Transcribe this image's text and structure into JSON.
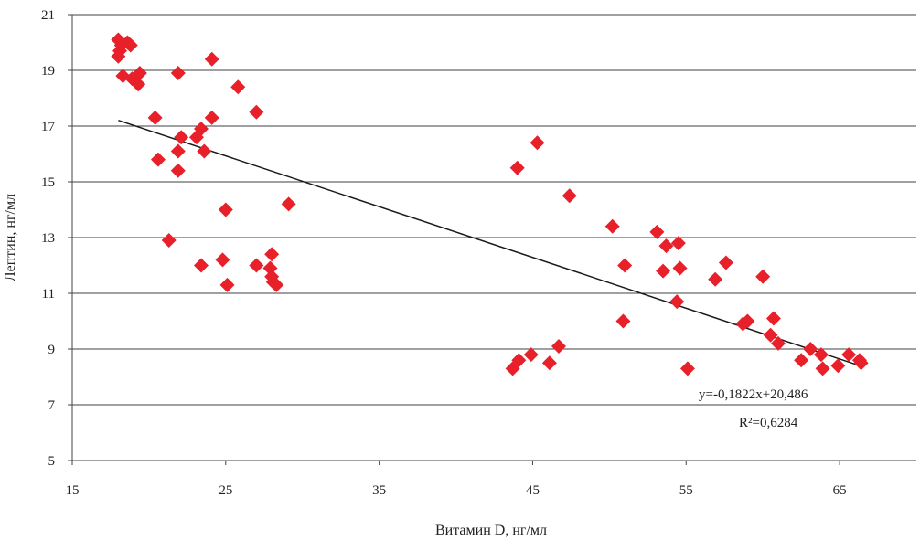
{
  "chart_data": {
    "type": "scatter",
    "title": "",
    "xlabel": "Витамин D, нг/мл",
    "ylabel": "Лептин, нг/мл",
    "xlim": [
      15,
      70
    ],
    "ylim": [
      5,
      21
    ],
    "x_ticks": [
      15,
      25,
      35,
      45,
      55,
      65
    ],
    "x_tick_labels": [
      "15",
      "25",
      "35",
      "45",
      "55",
      "65"
    ],
    "y_ticks": [
      5,
      7,
      9,
      11,
      13,
      15,
      17,
      19,
      21
    ],
    "y_tick_labels": [
      "5",
      "7",
      "9",
      "11",
      "13",
      "15",
      "17",
      "19",
      "21"
    ],
    "grid": "horizontal",
    "legend": "none",
    "marker": "diamond",
    "marker_color": "#e8202a",
    "line_color": "#1a1a1a",
    "points": [
      {
        "x": 18.0,
        "y": 20.1
      },
      {
        "x": 18.2,
        "y": 19.9
      },
      {
        "x": 18.6,
        "y": 20.0
      },
      {
        "x": 18.8,
        "y": 19.9
      },
      {
        "x": 18.1,
        "y": 19.7
      },
      {
        "x": 18.0,
        "y": 19.5
      },
      {
        "x": 18.3,
        "y": 18.8
      },
      {
        "x": 18.9,
        "y": 18.7
      },
      {
        "x": 19.4,
        "y": 18.9
      },
      {
        "x": 19.3,
        "y": 18.5
      },
      {
        "x": 21.9,
        "y": 18.9
      },
      {
        "x": 24.1,
        "y": 19.4
      },
      {
        "x": 20.4,
        "y": 17.3
      },
      {
        "x": 24.1,
        "y": 17.3
      },
      {
        "x": 25.8,
        "y": 18.4
      },
      {
        "x": 27.0,
        "y": 17.5
      },
      {
        "x": 23.4,
        "y": 16.9
      },
      {
        "x": 23.1,
        "y": 16.6
      },
      {
        "x": 22.1,
        "y": 16.6
      },
      {
        "x": 21.9,
        "y": 16.1
      },
      {
        "x": 23.6,
        "y": 16.1
      },
      {
        "x": 20.6,
        "y": 15.8
      },
      {
        "x": 21.9,
        "y": 15.4
      },
      {
        "x": 25.0,
        "y": 14.0
      },
      {
        "x": 29.1,
        "y": 14.2
      },
      {
        "x": 21.3,
        "y": 12.9
      },
      {
        "x": 23.4,
        "y": 12.0
      },
      {
        "x": 24.8,
        "y": 12.2
      },
      {
        "x": 27.0,
        "y": 12.0
      },
      {
        "x": 28.0,
        "y": 12.4
      },
      {
        "x": 27.9,
        "y": 11.9
      },
      {
        "x": 28.0,
        "y": 11.6
      },
      {
        "x": 28.1,
        "y": 11.4
      },
      {
        "x": 28.3,
        "y": 11.3
      },
      {
        "x": 25.1,
        "y": 11.3
      },
      {
        "x": 44.0,
        "y": 15.5
      },
      {
        "x": 45.3,
        "y": 16.4
      },
      {
        "x": 47.4,
        "y": 14.5
      },
      {
        "x": 50.2,
        "y": 13.4
      },
      {
        "x": 53.1,
        "y": 13.2
      },
      {
        "x": 53.7,
        "y": 12.7
      },
      {
        "x": 54.5,
        "y": 12.8
      },
      {
        "x": 53.5,
        "y": 11.8
      },
      {
        "x": 54.6,
        "y": 11.9
      },
      {
        "x": 51.0,
        "y": 12.0
      },
      {
        "x": 57.6,
        "y": 12.1
      },
      {
        "x": 56.9,
        "y": 11.5
      },
      {
        "x": 60.0,
        "y": 11.6
      },
      {
        "x": 54.4,
        "y": 10.7
      },
      {
        "x": 50.9,
        "y": 10.0
      },
      {
        "x": 58.7,
        "y": 9.9
      },
      {
        "x": 59.0,
        "y": 10.0
      },
      {
        "x": 60.7,
        "y": 10.1
      },
      {
        "x": 60.5,
        "y": 9.5
      },
      {
        "x": 61.0,
        "y": 9.2
      },
      {
        "x": 43.7,
        "y": 8.3
      },
      {
        "x": 44.1,
        "y": 8.6
      },
      {
        "x": 44.9,
        "y": 8.8
      },
      {
        "x": 46.1,
        "y": 8.5
      },
      {
        "x": 46.7,
        "y": 9.1
      },
      {
        "x": 55.1,
        "y": 8.3
      },
      {
        "x": 62.5,
        "y": 8.6
      },
      {
        "x": 63.1,
        "y": 9.0
      },
      {
        "x": 63.8,
        "y": 8.8
      },
      {
        "x": 63.9,
        "y": 8.3
      },
      {
        "x": 64.9,
        "y": 8.4
      },
      {
        "x": 65.6,
        "y": 8.8
      },
      {
        "x": 66.3,
        "y": 8.6
      },
      {
        "x": 66.4,
        "y": 8.5
      }
    ],
    "trendline": {
      "x_start": 18.0,
      "x_end": 66.4,
      "slope": -0.1822,
      "intercept": 20.486,
      "equation_label": "y=-0,1822x+20,486",
      "r2_label": "R²=0,6284"
    }
  }
}
